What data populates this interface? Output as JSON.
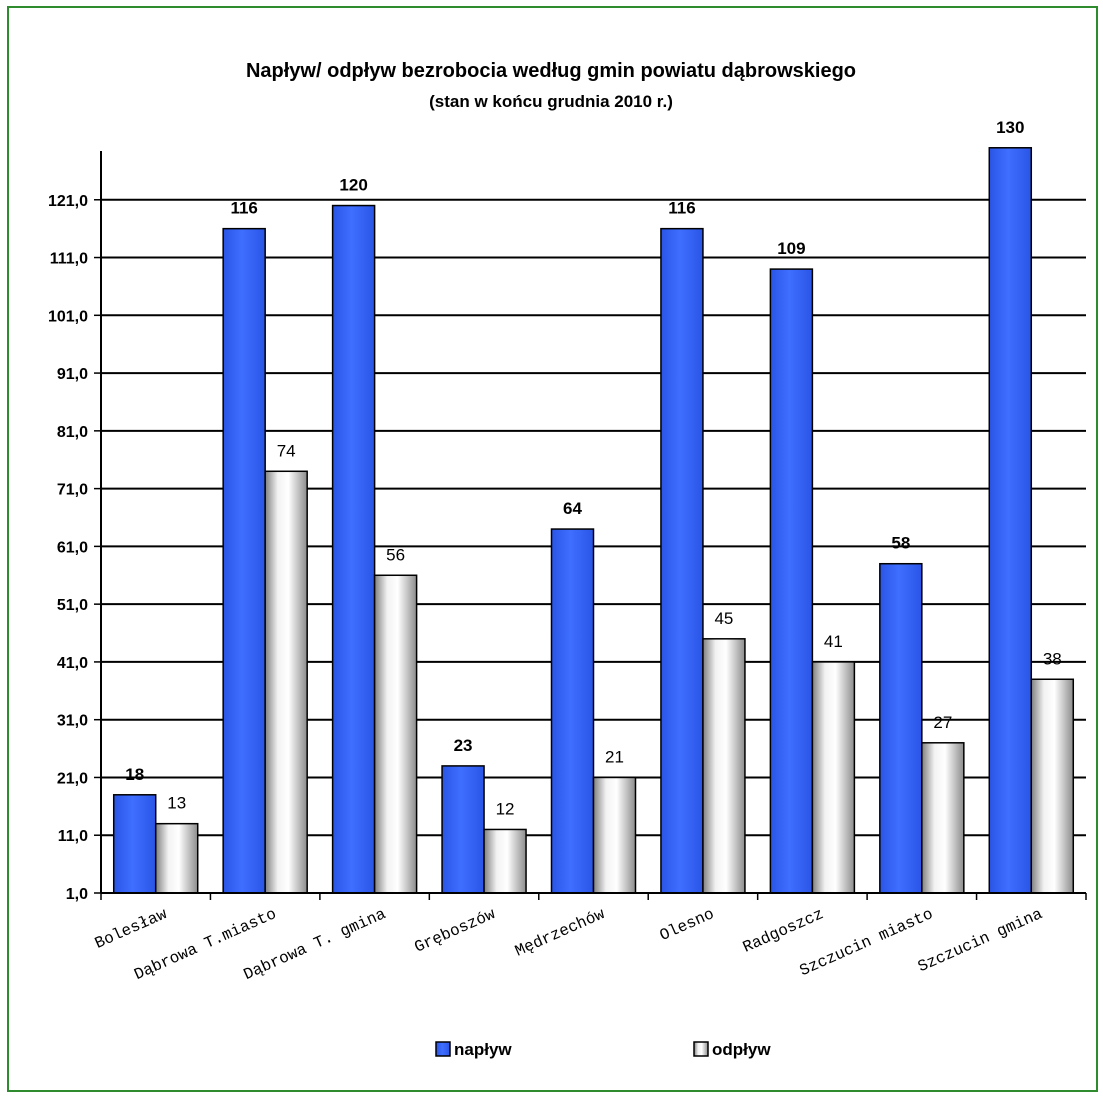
{
  "chart_data": {
    "type": "bar",
    "title": "Napływ/ odpływ bezrobocia według gmin powiatu dąbrowskiego",
    "subtitle": "(stan w końcu grudnia 2010 r.)",
    "categories": [
      "Bolesław",
      "Dąbrowa T.miasto",
      "Dąbrowa T. gmina",
      "Gręboszów",
      "Mędrzechów",
      "Olesno",
      "Radgoszcz",
      "Szczucin miasto",
      "Szczucin gmina"
    ],
    "series": [
      {
        "name": "napływ",
        "values": [
          18,
          116,
          120,
          23,
          64,
          116,
          109,
          58,
          130
        ],
        "color": "#3366ff"
      },
      {
        "name": "odpływ",
        "values": [
          13,
          74,
          56,
          12,
          21,
          45,
          41,
          27,
          38
        ],
        "color": "#d9d9d9"
      }
    ],
    "yticks": [
      "1,0",
      "11,0",
      "21,0",
      "31,0",
      "41,0",
      "51,0",
      "61,0",
      "71,0",
      "81,0",
      "91,0",
      "101,0",
      "111,0",
      "121,0"
    ],
    "ylim": [
      1,
      131
    ],
    "grid": true,
    "legend_position": "bottom",
    "frame_color": "#2e8b2e"
  }
}
